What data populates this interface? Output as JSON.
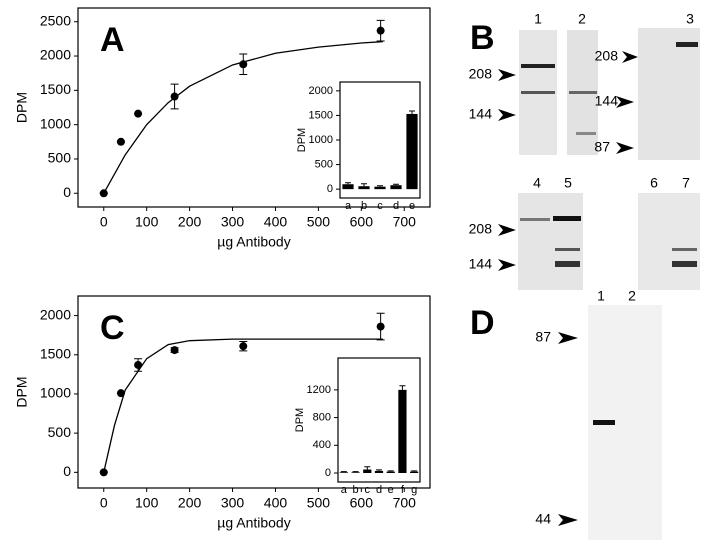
{
  "chart_data": [
    {
      "type": "scatter",
      "label": "A",
      "x_label": "µg Antibody",
      "y_label": "DPM",
      "x": [
        0,
        40,
        80,
        165,
        325,
        645
      ],
      "y": [
        0,
        750,
        1160,
        1410,
        1880,
        2370
      ],
      "errors": [
        0,
        0,
        0,
        180,
        150,
        150
      ],
      "curve_x": [
        0,
        50,
        100,
        150,
        200,
        300,
        400,
        500,
        600,
        650
      ],
      "curve_y": [
        0,
        560,
        1000,
        1320,
        1560,
        1870,
        2040,
        2130,
        2190,
        2210
      ],
      "xlim": [
        -60,
        760
      ],
      "ylim": [
        -200,
        2700
      ],
      "xticks": [
        0,
        100,
        200,
        300,
        400,
        500,
        600,
        700
      ],
      "yticks": [
        0,
        500,
        1000,
        1500,
        2000,
        2500
      ],
      "color": "#000000"
    },
    {
      "type": "bar",
      "y_label": "DPM",
      "categories": [
        "a",
        "b",
        "c",
        "d",
        "e"
      ],
      "values": [
        100,
        60,
        50,
        80,
        1530
      ],
      "errors": [
        30,
        50,
        20,
        20,
        60
      ],
      "ylim": [
        -180,
        2180
      ],
      "yticks": [
        0,
        500,
        1000,
        1500,
        2000
      ],
      "color": "#000000"
    },
    {
      "type": "scatter",
      "label": "C",
      "x_label": "µg Antibody",
      "y_label": "DPM",
      "x": [
        0,
        40,
        80,
        165,
        325,
        645
      ],
      "y": [
        0,
        1010,
        1370,
        1560,
        1610,
        1860
      ],
      "errors": [
        0,
        0,
        80,
        30,
        60,
        170
      ],
      "curve_x": [
        0,
        25,
        50,
        100,
        150,
        200,
        300,
        650
      ],
      "curve_y": [
        0,
        600,
        1050,
        1450,
        1630,
        1680,
        1700,
        1700
      ],
      "xlim": [
        -60,
        760
      ],
      "ylim": [
        -200,
        2250
      ],
      "xticks": [
        0,
        100,
        200,
        300,
        400,
        500,
        600,
        700
      ],
      "yticks": [
        0,
        500,
        1000,
        1500,
        2000
      ],
      "color": "#000000"
    },
    {
      "type": "bar",
      "y_label": "DPM",
      "categories": [
        "a",
        "b",
        "c",
        "d",
        "e",
        "f",
        "g"
      ],
      "values": [
        10,
        10,
        50,
        30,
        20,
        1200,
        20
      ],
      "errors": [
        10,
        10,
        40,
        15,
        10,
        60,
        10
      ],
      "ylim": [
        -130,
        1660
      ],
      "yticks": [
        0,
        400,
        800,
        1200
      ],
      "color": "#000000"
    }
  ],
  "panel_b": {
    "label": "B",
    "lane_numbers": [
      "1",
      "2",
      "3",
      "4",
      "5",
      "6",
      "7"
    ],
    "markers_upper": [
      "208",
      "144"
    ],
    "markers_lane3": [
      "208",
      "144",
      "87"
    ],
    "markers_lower": [
      "208",
      "144"
    ]
  },
  "panel_d": {
    "label": "D",
    "lane_numbers": [
      "1",
      "2"
    ],
    "markers": [
      "87",
      "44"
    ]
  }
}
